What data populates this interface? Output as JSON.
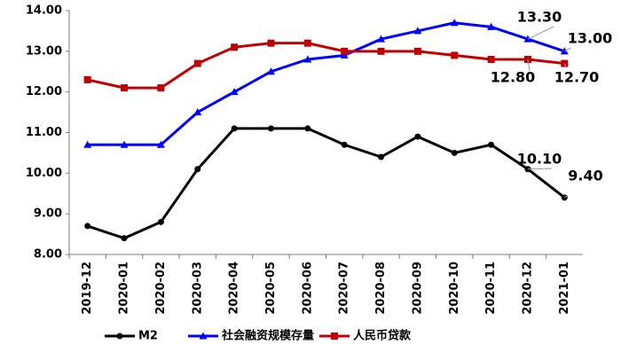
{
  "chart_data": {
    "type": "line",
    "categories": [
      "2019-12",
      "2020-01",
      "2020-02",
      "2020-03",
      "2020-04",
      "2020-05",
      "2020-06",
      "2020-07",
      "2020-08",
      "2020-09",
      "2020-10",
      "2020-11",
      "2020-12",
      "2021-01"
    ],
    "series": [
      {
        "name": "M2",
        "color": "#000000",
        "marker": "circle",
        "values": [
          8.7,
          8.4,
          8.8,
          10.1,
          11.1,
          11.1,
          11.1,
          10.7,
          10.4,
          10.9,
          10.5,
          10.7,
          10.1,
          9.4
        ],
        "value_labels": [
          null,
          null,
          null,
          null,
          null,
          null,
          null,
          null,
          null,
          null,
          null,
          null,
          "10.10",
          "9.40"
        ]
      },
      {
        "name": "社会融资规模存量",
        "color": "#0000ff",
        "marker": "triangle",
        "values": [
          10.7,
          10.7,
          10.7,
          11.5,
          12.0,
          12.5,
          12.8,
          12.9,
          13.3,
          13.5,
          13.7,
          13.6,
          13.3,
          13.0
        ],
        "value_labels": [
          null,
          null,
          null,
          null,
          null,
          null,
          null,
          null,
          null,
          null,
          null,
          null,
          "13.30",
          "13.00"
        ]
      },
      {
        "name": "人民币贷款",
        "color": "#c00000",
        "marker": "square",
        "values": [
          12.3,
          12.1,
          12.1,
          12.7,
          13.1,
          13.2,
          13.2,
          13.0,
          13.0,
          13.0,
          12.9,
          12.8,
          12.8,
          12.7
        ],
        "value_labels": [
          null,
          null,
          null,
          null,
          null,
          null,
          null,
          null,
          null,
          null,
          null,
          null,
          "12.80",
          "12.70"
        ]
      }
    ],
    "ylim": [
      8,
      14
    ],
    "yticks": [
      {
        "value": 8,
        "label": "8.00"
      },
      {
        "value": 9,
        "label": "9.00"
      },
      {
        "value": 10,
        "label": "10.00"
      },
      {
        "value": 11,
        "label": "11.00"
      },
      {
        "value": 12,
        "label": "12.00"
      },
      {
        "value": 13,
        "label": "13.00"
      },
      {
        "value": 14,
        "label": "14.00"
      }
    ],
    "grid": false,
    "legend": "bottom"
  }
}
